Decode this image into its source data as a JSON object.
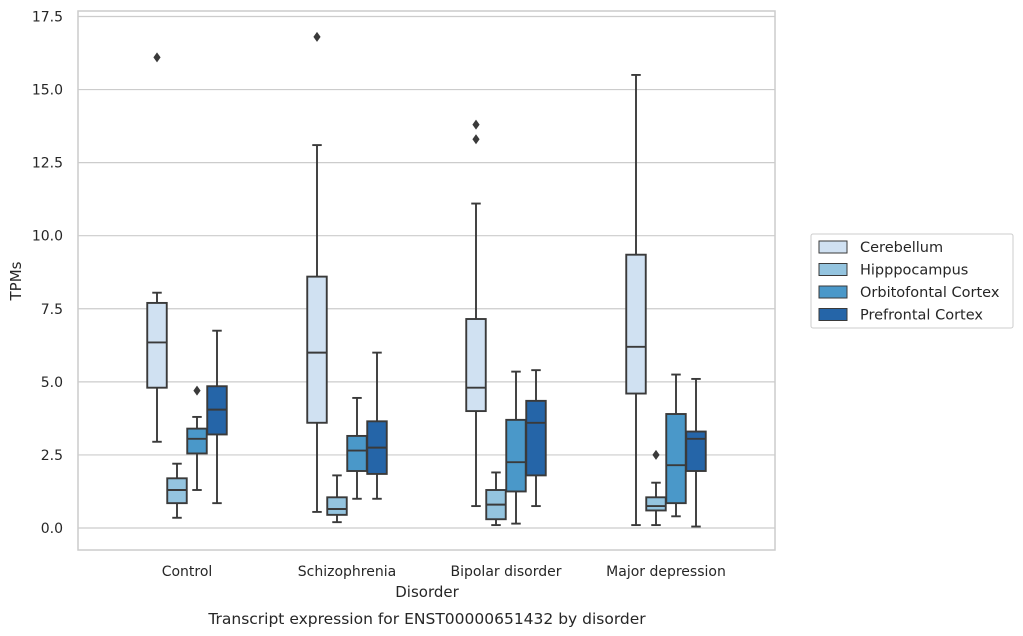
{
  "chart_data": {
    "type": "box",
    "caption": "Transcript expression for ENST00000651432 by disorder",
    "xlabel": "Disorder",
    "ylabel": "TPMs",
    "ylim": [
      -0.7,
      17.6
    ],
    "yticks": [
      "0.0",
      "2.5",
      "5.0",
      "7.5",
      "10.0",
      "12.5",
      "15.0",
      "17.5"
    ],
    "ytick_values": [
      0,
      2.5,
      5,
      7.5,
      10,
      12.5,
      15,
      17.5
    ],
    "grid": "horizontal",
    "legend_position": "right",
    "categories": [
      "Control",
      "Schizophrenia",
      "Bipolar disorder",
      "Major depression"
    ],
    "series": [
      {
        "name": "Cerebellum",
        "color": "#d0e1f2",
        "boxes": [
          {
            "whislo": 2.95,
            "q1": 4.8,
            "med": 6.35,
            "q3": 7.7,
            "whishi": 8.05,
            "fliers": [
              16.1
            ]
          },
          {
            "whislo": 0.55,
            "q1": 3.6,
            "med": 6.0,
            "q3": 8.6,
            "whishi": 13.1,
            "fliers": [
              16.8
            ]
          },
          {
            "whislo": 0.75,
            "q1": 4.0,
            "med": 4.8,
            "q3": 7.15,
            "whishi": 11.1,
            "fliers": [
              13.3,
              13.8
            ]
          },
          {
            "whislo": 0.1,
            "q1": 4.6,
            "med": 6.2,
            "q3": 9.35,
            "whishi": 15.5,
            "fliers": []
          }
        ]
      },
      {
        "name": "Hipppocampus",
        "color": "#94c4df",
        "boxes": [
          {
            "whislo": 0.35,
            "q1": 0.85,
            "med": 1.3,
            "q3": 1.7,
            "whishi": 2.2,
            "fliers": []
          },
          {
            "whislo": 0.2,
            "q1": 0.45,
            "med": 0.65,
            "q3": 1.05,
            "whishi": 1.8,
            "fliers": []
          },
          {
            "whislo": 0.1,
            "q1": 0.3,
            "med": 0.8,
            "q3": 1.3,
            "whishi": 1.9,
            "fliers": []
          },
          {
            "whislo": 0.1,
            "q1": 0.6,
            "med": 0.75,
            "q3": 1.05,
            "whishi": 1.55,
            "fliers": [
              2.5
            ]
          }
        ]
      },
      {
        "name": "Orbitofontal Cortex",
        "color": "#4a98c9",
        "boxes": [
          {
            "whislo": 1.3,
            "q1": 2.55,
            "med": 3.05,
            "q3": 3.4,
            "whishi": 3.8,
            "fliers": [
              4.7
            ]
          },
          {
            "whislo": 1.0,
            "q1": 1.95,
            "med": 2.65,
            "q3": 3.15,
            "whishi": 4.45,
            "fliers": []
          },
          {
            "whislo": 0.15,
            "q1": 1.25,
            "med": 2.25,
            "q3": 3.7,
            "whishi": 5.35,
            "fliers": []
          },
          {
            "whislo": 0.4,
            "q1": 0.85,
            "med": 2.15,
            "q3": 3.9,
            "whishi": 5.25,
            "fliers": []
          }
        ]
      },
      {
        "name": "Prefrontal Cortex",
        "color": "#2565a8",
        "boxes": [
          {
            "whislo": 0.85,
            "q1": 3.2,
            "med": 4.05,
            "q3": 4.85,
            "whishi": 6.75,
            "fliers": []
          },
          {
            "whislo": 1.0,
            "q1": 1.85,
            "med": 2.75,
            "q3": 3.65,
            "whishi": 6.0,
            "fliers": []
          },
          {
            "whislo": 0.75,
            "q1": 1.8,
            "med": 3.6,
            "q3": 4.35,
            "whishi": 5.4,
            "fliers": []
          },
          {
            "whislo": 0.05,
            "q1": 1.95,
            "med": 3.05,
            "q3": 3.3,
            "whishi": 5.1,
            "fliers": []
          }
        ]
      }
    ]
  }
}
